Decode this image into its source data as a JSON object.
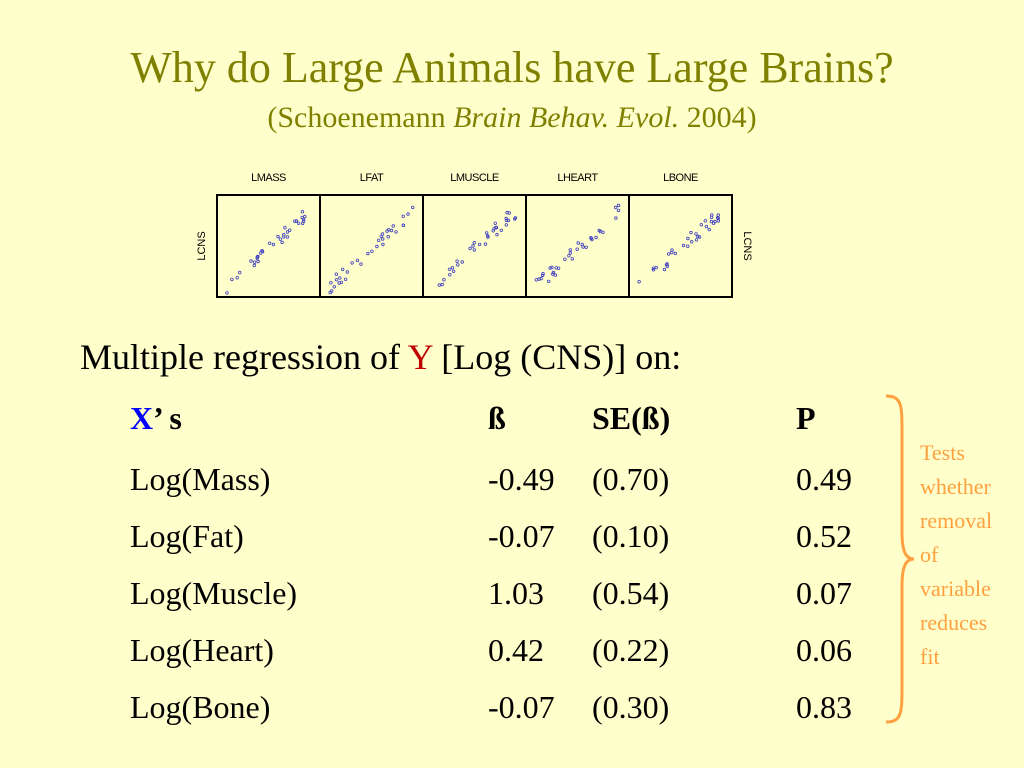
{
  "slide": {
    "title": "Why do Large Animals have Large Brains?",
    "subtitle_open": "(Schoenemann ",
    "subtitle_journal": "Brain Behav. Evol.",
    "subtitle_close": " 2004)"
  },
  "scatter_matrix": {
    "panels": [
      "LMASS",
      "LFAT",
      "LMUSCLE",
      "LHEART",
      "LBONE"
    ],
    "y_label_left": "LCNS",
    "y_label_right": "LCNS",
    "point_color": "#4040c0"
  },
  "heading": {
    "prefix": "Multiple regression of ",
    "y": "Y",
    "suffix": " [Log (CNS)] on:",
    "y_color": "#c00000"
  },
  "table": {
    "header": {
      "x": "X",
      "x_suffix": "’ s",
      "beta": "ß",
      "se": "SE(ß)",
      "p": "P"
    },
    "rows": [
      {
        "name": "Log(Mass)",
        "beta": "-0.49",
        "se": "(0.70)",
        "p": "0.49"
      },
      {
        "name": "Log(Fat)",
        "beta": "-0.07",
        "se": "(0.10)",
        "p": "0.52"
      },
      {
        "name": "Log(Muscle)",
        "beta": "1.03",
        "se": "(0.54)",
        "p": "0.07"
      },
      {
        "name": "Log(Heart)",
        "beta": "0.42",
        "se": "(0.22)",
        "p": "0.06"
      },
      {
        "name": "Log(Bone)",
        "beta": "-0.07",
        "se": "(0.30)",
        "p": "0.83"
      }
    ]
  },
  "annotation": {
    "lines": [
      "Tests",
      "whether",
      "removal",
      "of",
      "variable",
      "reduces",
      "fit"
    ],
    "color": "#ffa040"
  }
}
